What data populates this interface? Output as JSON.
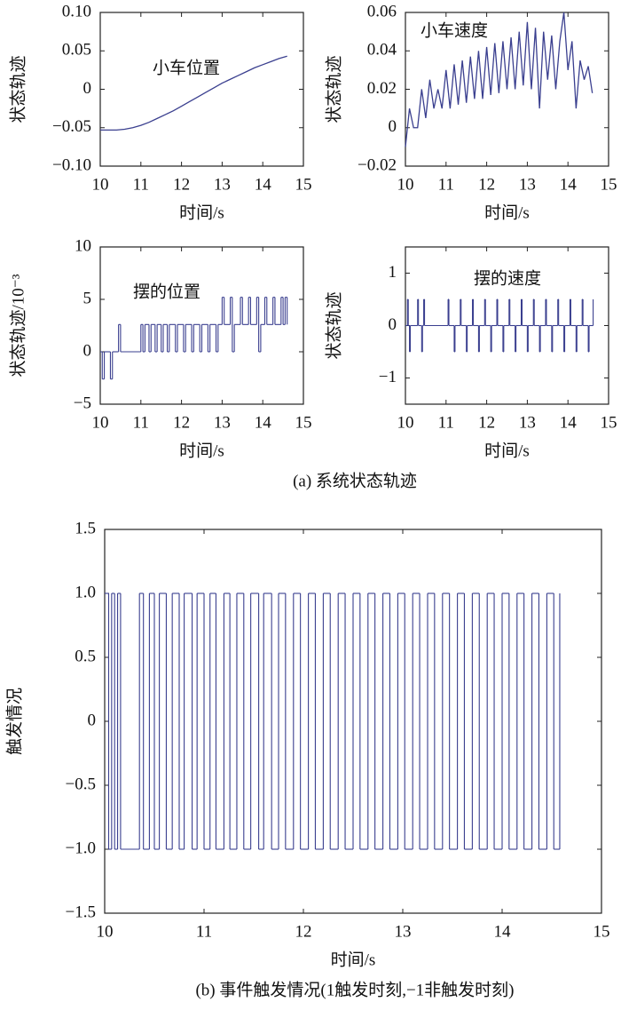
{
  "captions": [
    "(a) 系统状态轨迹",
    "(b) 事件触发情况(1触发时刻,−1非触发时刻)"
  ],
  "chart_data": [
    {
      "type": "line",
      "annotation": "小车位置",
      "xlabel": "时间/s",
      "ylabel": "状态轨迹",
      "color": "#3a3f8f",
      "xlim": [
        10,
        15
      ],
      "xticks": [
        10,
        11,
        12,
        13,
        14,
        15
      ],
      "ylim": [
        -0.1,
        0.1
      ],
      "yticks": [
        {
          "value": 0.1,
          "label": "0.10"
        },
        0.05,
        0,
        {
          "value": -0.05,
          "label": "−0.05"
        },
        {
          "value": -0.1,
          "label": "−0.10"
        }
      ],
      "x": [
        10,
        10.2,
        10.4,
        10.6,
        10.8,
        11,
        11.2,
        11.4,
        11.6,
        11.8,
        12,
        12.2,
        12.4,
        12.6,
        12.8,
        13,
        13.2,
        13.4,
        13.6,
        13.8,
        14,
        14.2,
        14.4,
        14.6
      ],
      "values": [
        -0.053,
        -0.053,
        -0.053,
        -0.052,
        -0.05,
        -0.047,
        -0.043,
        -0.038,
        -0.033,
        -0.028,
        -0.022,
        -0.016,
        -0.01,
        -0.004,
        0.002,
        0.008,
        0.013,
        0.018,
        0.023,
        0.028,
        0.032,
        0.036,
        0.04,
        0.043
      ]
    },
    {
      "type": "line",
      "annotation": "小车速度",
      "xlabel": "时间/s",
      "ylabel": "状态轨迹",
      "color": "#3a3f8f",
      "xlim": [
        10,
        15
      ],
      "xticks": [
        10,
        11,
        12,
        13,
        14,
        15
      ],
      "ylim": [
        -0.02,
        0.06
      ],
      "yticks": [
        0.06,
        0.04,
        0.02,
        0,
        {
          "value": -0.02,
          "label": "−0.02"
        }
      ],
      "x": [
        10,
        10.1,
        10.2,
        10.3,
        10.4,
        10.5,
        10.6,
        10.7,
        10.8,
        10.9,
        11,
        11.1,
        11.2,
        11.3,
        11.4,
        11.5,
        11.6,
        11.7,
        11.8,
        11.9,
        12,
        12.1,
        12.2,
        12.3,
        12.4,
        12.5,
        12.6,
        12.7,
        12.8,
        12.9,
        13,
        13.1,
        13.2,
        13.3,
        13.4,
        13.5,
        13.6,
        13.7,
        13.8,
        13.9,
        14,
        14.1,
        14.2,
        14.3,
        14.4,
        14.5,
        14.6
      ],
      "values": [
        -0.01,
        0.01,
        0,
        0,
        0.02,
        0.005,
        0.025,
        0.01,
        0.02,
        0.01,
        0.03,
        0.01,
        0.033,
        0.012,
        0.035,
        0.013,
        0.037,
        0.015,
        0.04,
        0.015,
        0.042,
        0.017,
        0.044,
        0.018,
        0.045,
        0.02,
        0.047,
        0.02,
        0.05,
        0.022,
        0.055,
        0.02,
        0.052,
        0.01,
        0.05,
        0.025,
        0.048,
        0.02,
        0.045,
        0.06,
        0.03,
        0.045,
        0.01,
        0.035,
        0.025,
        0.032,
        0.018
      ]
    },
    {
      "type": "step",
      "annotation": "摆的位置",
      "xlabel": "时间/s",
      "ylabel": "状态轨迹/10⁻³",
      "color": "#3a3f8f",
      "xlim": [
        10,
        15
      ],
      "xticks": [
        10,
        11,
        12,
        13,
        14,
        15
      ],
      "ylim": [
        -5,
        10
      ],
      "yticks": [
        10,
        5,
        0,
        {
          "value": -5,
          "label": "−5"
        }
      ],
      "x": [
        10,
        10.05,
        10.1,
        10.25,
        10.3,
        10.45,
        10.5,
        11,
        11.05,
        11.1,
        11.2,
        11.25,
        11.35,
        11.4,
        11.5,
        11.55,
        11.65,
        11.7,
        11.85,
        11.9,
        12.05,
        12.1,
        12.25,
        12.3,
        12.45,
        12.5,
        12.65,
        12.7,
        12.85,
        12.9,
        13,
        13.05,
        13.2,
        13.25,
        13.3,
        13.45,
        13.5,
        13.65,
        13.7,
        13.85,
        13.9,
        13.95,
        14.05,
        14.1,
        14.25,
        14.3,
        14.45,
        14.5,
        14.55,
        14.6
      ],
      "values": [
        0,
        -2.6,
        0,
        -2.6,
        0,
        2.6,
        0,
        2.6,
        0,
        2.6,
        0,
        2.6,
        0,
        2.6,
        0,
        2.6,
        0,
        2.6,
        0,
        2.6,
        0,
        2.6,
        0,
        2.6,
        0,
        2.6,
        0,
        2.6,
        0,
        2.6,
        5.2,
        2.6,
        5.2,
        0,
        2.6,
        5.2,
        2.6,
        5.2,
        2.6,
        5.2,
        0,
        2.6,
        5.2,
        2.6,
        5.2,
        2.6,
        5.2,
        2.6,
        5.2,
        2.6
      ]
    },
    {
      "type": "step",
      "annotation": "摆的速度",
      "xlabel": "时间/s",
      "ylabel": "状态轨迹",
      "color": "#3a3f8f",
      "xlim": [
        10,
        15
      ],
      "xticks": [
        10,
        11,
        12,
        13,
        14,
        15
      ],
      "ylim": [
        -1.5,
        1.5
      ],
      "yticks": [
        1,
        0,
        {
          "value": -1,
          "label": "−1"
        }
      ],
      "x": [
        10,
        10.05,
        10.07,
        10.1,
        10.12,
        10.3,
        10.32,
        10.4,
        10.42,
        10.45,
        10.47,
        11.05,
        11.07,
        11.2,
        11.22,
        11.35,
        11.37,
        11.5,
        11.52,
        11.65,
        11.67,
        11.8,
        11.82,
        11.95,
        11.97,
        12.1,
        12.12,
        12.25,
        12.27,
        12.4,
        12.42,
        12.55,
        12.57,
        12.7,
        12.72,
        12.85,
        12.87,
        13,
        13.02,
        13.15,
        13.17,
        13.3,
        13.32,
        13.45,
        13.47,
        13.6,
        13.62,
        13.75,
        13.77,
        13.9,
        13.92,
        14.05,
        14.07,
        14.2,
        14.22,
        14.35,
        14.37,
        14.5,
        14.52,
        14.62
      ],
      "values": [
        0,
        0.5,
        0,
        -0.5,
        0,
        0.5,
        0,
        -0.5,
        0,
        0.5,
        0,
        0.5,
        0,
        -0.5,
        0,
        0.5,
        0,
        -0.5,
        0,
        0.5,
        0,
        -0.5,
        0,
        0.5,
        0,
        -0.5,
        0,
        0.5,
        0,
        -0.5,
        0,
        0.5,
        0,
        -0.5,
        0,
        0.5,
        0,
        -0.5,
        0,
        0.5,
        0,
        -0.5,
        0,
        0.5,
        0,
        -0.5,
        0,
        0.5,
        0,
        -0.5,
        0,
        0.5,
        0,
        -0.5,
        0,
        0.5,
        0,
        -0.5,
        0,
        0.5
      ]
    },
    {
      "type": "step",
      "xlabel": "时间/s",
      "ylabel": "触发情况",
      "color": "#3a3f8f",
      "xlim": [
        10,
        15
      ],
      "xticks": [
        10,
        11,
        12,
        13,
        14,
        15
      ],
      "ylim": [
        -1.5,
        1.5
      ],
      "yticks": [
        1.5,
        {
          "value": 1,
          "label": "1.0"
        },
        0.5,
        0,
        {
          "value": -0.5,
          "label": "−0.5"
        },
        {
          "value": -1,
          "label": "−1.0"
        },
        {
          "value": -1.5,
          "label": "−1.5"
        }
      ],
      "x": [
        10,
        10.04,
        10.07,
        10.1,
        10.13,
        10.16,
        10.35,
        10.39,
        10.45,
        10.5,
        10.55,
        10.62,
        10.68,
        10.75,
        10.8,
        10.88,
        10.93,
        11,
        11.06,
        11.12,
        11.2,
        11.26,
        11.33,
        11.4,
        11.47,
        11.55,
        11.6,
        11.68,
        11.75,
        11.82,
        11.9,
        11.97,
        12.05,
        12.12,
        12.2,
        12.27,
        12.35,
        12.42,
        12.5,
        12.57,
        12.65,
        12.72,
        12.8,
        12.87,
        12.95,
        13.02,
        13.1,
        13.17,
        13.25,
        13.32,
        13.4,
        13.47,
        13.55,
        13.62,
        13.7,
        13.77,
        13.85,
        13.92,
        14,
        14.07,
        14.15,
        14.22,
        14.3,
        14.37,
        14.45,
        14.52,
        14.58
      ],
      "values": [
        1,
        -1,
        1,
        -1,
        1,
        -1,
        1,
        -1,
        1,
        -1,
        1,
        -1,
        1,
        -1,
        1,
        -1,
        1,
        -1,
        1,
        -1,
        1,
        -1,
        1,
        -1,
        1,
        -1,
        1,
        -1,
        1,
        -1,
        1,
        -1,
        1,
        -1,
        1,
        -1,
        1,
        -1,
        1,
        -1,
        1,
        -1,
        1,
        -1,
        1,
        -1,
        1,
        -1,
        1,
        -1,
        1,
        -1,
        1,
        -1,
        1,
        -1,
        1,
        -1,
        1,
        -1,
        1,
        -1,
        1,
        -1,
        1,
        -1,
        1
      ]
    }
  ]
}
